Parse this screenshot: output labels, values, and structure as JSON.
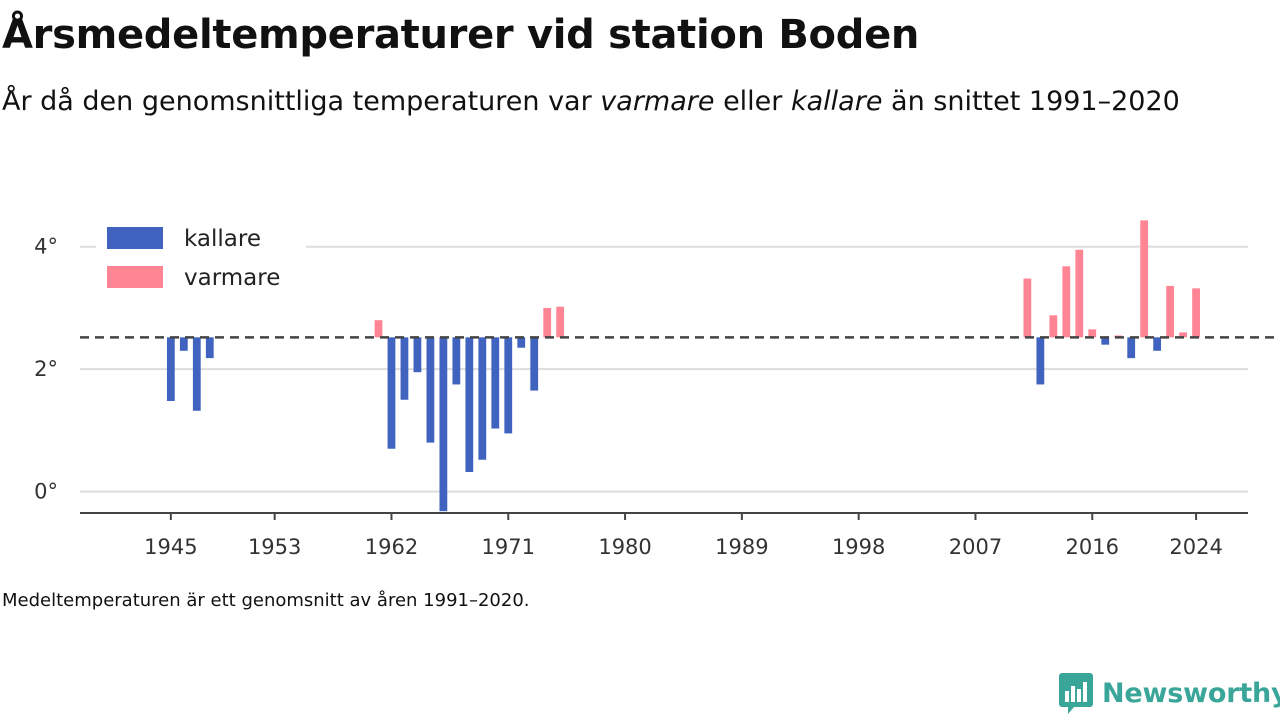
{
  "header": {
    "title": "Årsmedeltemperaturer vid station Boden",
    "subtitle_part1": "År då den genomsnittliga temperaturen var ",
    "subtitle_warm": "varmare",
    "subtitle_part2": " eller ",
    "subtitle_cold": "kallare",
    "subtitle_part3": " än snittet 1991–2020"
  },
  "footnote": "Medeltemperaturen är ett genomsnitt av åren 1991–2020.",
  "brand": {
    "name": "Newsworthy",
    "icon": "newsworthy-logo-icon"
  },
  "colors": {
    "colder": "#3f63bf",
    "warmer": "#ff8595",
    "baseline": "#444444",
    "grid": "#dddddd",
    "brand": "#3aa69a"
  },
  "chart_data": {
    "type": "bar",
    "title": "Årsmedeltemperaturer vid station Boden",
    "baseline": 2.52,
    "xlim": [
      1938,
      2028
    ],
    "ylim": [
      -0.35,
      4.6
    ],
    "x_ticks": [
      1945,
      1953,
      1962,
      1971,
      1980,
      1989,
      1998,
      2007,
      2016,
      2024
    ],
    "y_ticks": [
      {
        "value": 0,
        "label": "0°"
      },
      {
        "value": 2,
        "label": "2°"
      },
      {
        "value": 4,
        "label": "4°"
      }
    ],
    "grid": true,
    "baseline_style": "dashed",
    "legend": {
      "placement": "top-left",
      "entries": [
        {
          "name": "kallare",
          "color": "#3f63bf"
        },
        {
          "name": "varmare",
          "color": "#ff8595"
        }
      ]
    },
    "series": [
      {
        "name": "kallare",
        "color": "#3f63bf",
        "points": [
          {
            "x": 1945,
            "y": 1.48
          },
          {
            "x": 1946,
            "y": 2.3
          },
          {
            "x": 1947,
            "y": 1.32
          },
          {
            "x": 1948,
            "y": 2.18
          },
          {
            "x": 1962,
            "y": 0.7
          },
          {
            "x": 1963,
            "y": 1.5
          },
          {
            "x": 1964,
            "y": 1.95
          },
          {
            "x": 1965,
            "y": 0.8
          },
          {
            "x": 1966,
            "y": -0.32
          },
          {
            "x": 1967,
            "y": 1.75
          },
          {
            "x": 1968,
            "y": 0.32
          },
          {
            "x": 1969,
            "y": 0.52
          },
          {
            "x": 1970,
            "y": 1.03
          },
          {
            "x": 1971,
            "y": 0.95
          },
          {
            "x": 1972,
            "y": 2.35
          },
          {
            "x": 1973,
            "y": 1.65
          },
          {
            "x": 2012,
            "y": 1.75
          },
          {
            "x": 2017,
            "y": 2.4
          },
          {
            "x": 2019,
            "y": 2.18
          },
          {
            "x": 2021,
            "y": 2.3
          }
        ]
      },
      {
        "name": "varmare",
        "color": "#ff8595",
        "points": [
          {
            "x": 1961,
            "y": 2.8
          },
          {
            "x": 1974,
            "y": 3.0
          },
          {
            "x": 1975,
            "y": 3.02
          },
          {
            "x": 2011,
            "y": 3.48
          },
          {
            "x": 2013,
            "y": 2.88
          },
          {
            "x": 2014,
            "y": 3.68
          },
          {
            "x": 2015,
            "y": 3.95
          },
          {
            "x": 2016,
            "y": 2.65
          },
          {
            "x": 2018,
            "y": 2.55
          },
          {
            "x": 2020,
            "y": 4.43
          },
          {
            "x": 2022,
            "y": 3.36
          },
          {
            "x": 2023,
            "y": 2.6
          },
          {
            "x": 2024,
            "y": 3.32
          }
        ]
      }
    ]
  }
}
